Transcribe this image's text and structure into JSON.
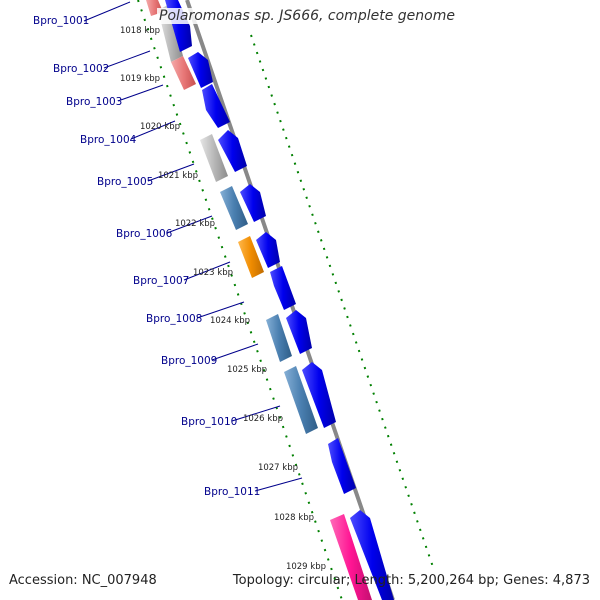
{
  "title": "Polaromonas sp. JS666, complete genome",
  "footer": {
    "accession": "Accession: NC_007948",
    "summary": "Topology: circular; Length: 5,200,264 bp; Genes: 4,873"
  },
  "colors": {
    "backbone": "#888888",
    "blue_gene": "#0000ee",
    "steel_gene": "#4a7fb0",
    "gray_gene": "#b8b8b8",
    "salmon_gene": "#e87878",
    "orange_gene": "#f08c00",
    "pink_gene": "#ff1493",
    "tick": "#008000",
    "label": "#00008b"
  },
  "kbp_labels": [
    "1018 kbp",
    "1019 kbp",
    "1020 kbp",
    "1021 kbp",
    "1022 kbp",
    "1023 kbp",
    "1024 kbp",
    "1025 kbp",
    "1026 kbp",
    "1027 kbp",
    "1028 kbp",
    "1029 kbp"
  ],
  "gene_labels": [
    "Bpro_1001",
    "Bpro_1002",
    "Bpro_1003",
    "Bpro_1004",
    "Bpro_1005",
    "Bpro_1006",
    "Bpro_1007",
    "Bpro_1008",
    "Bpro_1009",
    "Bpro_1010",
    "Bpro_1011"
  ]
}
